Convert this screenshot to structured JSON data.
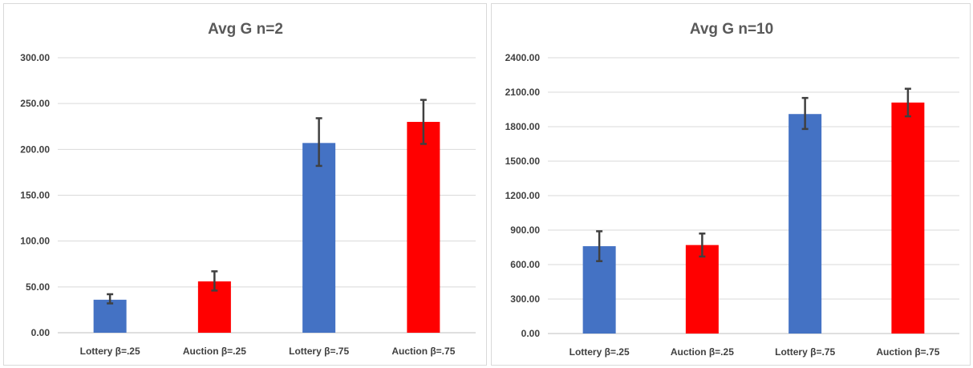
{
  "charts": [
    {
      "title": "Avg G n=2",
      "type": "bar",
      "categories": [
        "Lottery β=.25",
        "Auction β=.25",
        "Lottery β=.75",
        "Auction β=.75"
      ],
      "values": [
        36,
        56,
        207,
        230
      ],
      "error_low": [
        32,
        46,
        182,
        206
      ],
      "error_high": [
        42,
        67,
        234,
        254
      ],
      "colors": [
        "#4472C4",
        "#FF0000",
        "#4472C4",
        "#FF0000"
      ],
      "ylim": [
        0,
        300
      ],
      "yticks": [
        "0.00",
        "50.00",
        "100.00",
        "150.00",
        "200.00",
        "250.00",
        "300.00"
      ],
      "grid": true
    },
    {
      "title": "Avg G n=10",
      "type": "bar",
      "categories": [
        "Lottery β=.25",
        "Auction β=.25",
        "Lottery β=.75",
        "Auction β=.75"
      ],
      "values": [
        760,
        770,
        1910,
        2010
      ],
      "error_low": [
        630,
        670,
        1780,
        1890
      ],
      "error_high": [
        890,
        870,
        2050,
        2130
      ],
      "colors": [
        "#4472C4",
        "#FF0000",
        "#4472C4",
        "#FF0000"
      ],
      "ylim": [
        0,
        2400
      ],
      "yticks": [
        "0.00",
        "300.00",
        "600.00",
        "900.00",
        "1200.00",
        "1500.00",
        "1800.00",
        "2100.00",
        "2400.00"
      ],
      "grid": true
    }
  ],
  "chart_data": [
    {
      "type": "bar",
      "title": "Avg G n=2",
      "categories": [
        "Lottery β=.25",
        "Auction β=.25",
        "Lottery β=.75",
        "Auction β=.75"
      ],
      "values": [
        36,
        56,
        207,
        230
      ],
      "error_range": [
        [
          32,
          42
        ],
        [
          46,
          67
        ],
        [
          182,
          234
        ],
        [
          206,
          254
        ]
      ],
      "xlabel": "",
      "ylabel": "",
      "ylim": [
        0,
        300
      ],
      "grid": true,
      "legend": "none"
    },
    {
      "type": "bar",
      "title": "Avg G n=10",
      "categories": [
        "Lottery β=.25",
        "Auction β=.25",
        "Lottery β=.75",
        "Auction β=.75"
      ],
      "values": [
        760,
        770,
        1910,
        2010
      ],
      "error_range": [
        [
          630,
          890
        ],
        [
          670,
          870
        ],
        [
          1780,
          2050
        ],
        [
          1890,
          2130
        ]
      ],
      "xlabel": "",
      "ylabel": "",
      "ylim": [
        0,
        2400
      ],
      "grid": true,
      "legend": "none"
    }
  ]
}
